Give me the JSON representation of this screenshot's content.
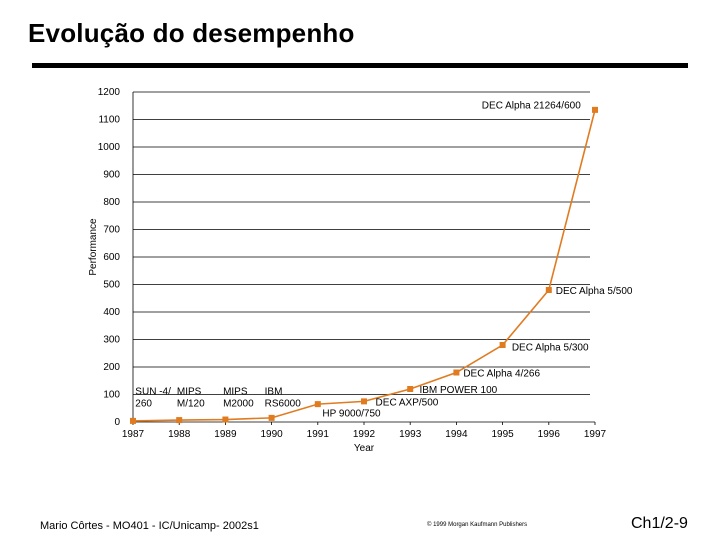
{
  "slide": {
    "title": "Evolução do desempenho",
    "footer_left": "Mario Côrtes - MO401 - IC/Unicamp- 2002s1",
    "footer_center": "© 1999 Morgan Kaufmann Publishers",
    "footer_right": "Ch1/2-9"
  },
  "colors": {
    "series": "#e07b20",
    "grid": "#000000"
  },
  "chart_data": {
    "type": "line",
    "xlabel": "Year",
    "ylabel": "Performance",
    "xlim": [
      1987,
      1997
    ],
    "ylim": [
      0,
      1200
    ],
    "yticks": [
      0,
      100,
      200,
      300,
      400,
      500,
      600,
      700,
      800,
      900,
      1000,
      1100,
      1200
    ],
    "xticks": [
      1987,
      1988,
      1989,
      1990,
      1991,
      1992,
      1993,
      1994,
      1995,
      1996,
      1997
    ],
    "grid": true,
    "series": [
      {
        "x": [
          1987,
          1988,
          1989,
          1990,
          1991,
          1992,
          1993,
          1994,
          1995,
          1996,
          1997
        ],
        "y": [
          4,
          7,
          9,
          15,
          65,
          75,
          120,
          180,
          280,
          480,
          1135
        ]
      }
    ],
    "annotations": [
      {
        "lines": [
          "SUN -4/",
          "260"
        ],
        "x": 1987.05,
        "y": 100
      },
      {
        "lines": [
          "MIPS",
          "M/120"
        ],
        "x": 1987.95,
        "y": 100
      },
      {
        "lines": [
          "MIPS",
          "M2000"
        ],
        "x": 1988.95,
        "y": 100
      },
      {
        "lines": [
          "IBM",
          "RS6000"
        ],
        "x": 1989.85,
        "y": 100
      },
      {
        "lines": [
          "HP 9000/750"
        ],
        "x": 1991.1,
        "y": 20
      },
      {
        "lines": [
          "DEC AXP/500"
        ],
        "x": 1992.25,
        "y": 60
      },
      {
        "lines": [
          "IBM POWER 100"
        ],
        "x": 1993.2,
        "y": 105
      },
      {
        "lines": [
          "DEC Alpha 4/266"
        ],
        "x": 1994.15,
        "y": 165
      },
      {
        "lines": [
          "DEC Alpha 5/300"
        ],
        "x": 1995.2,
        "y": 260
      },
      {
        "lines": [
          "DEC Alpha 5/500"
        ],
        "x": 1996.15,
        "y": 465
      },
      {
        "lines": [
          "DEC Alpha 21264/600"
        ],
        "x": 1994.55,
        "y": 1140
      }
    ]
  }
}
